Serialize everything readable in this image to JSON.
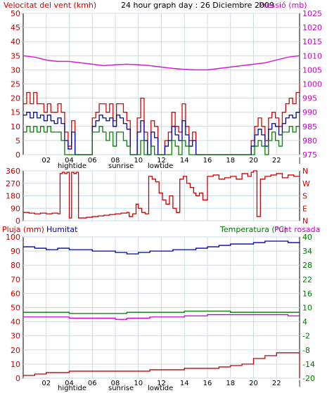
{
  "chart_data": [
    {
      "type": "line",
      "title": "24 hour graph day : 26 Diciembre 2009",
      "ylabel_left": "Velocitat del vent (kmh)",
      "ylabel_right": "Pressió (mb)",
      "x_ticks": [
        "02",
        "04",
        "06",
        "08",
        "10",
        "12",
        "14",
        "16",
        "18",
        "20",
        "22",
        "|"
      ],
      "x_annotations": [
        "hightide",
        "sunrise",
        "lowtide"
      ],
      "ylim_left": [
        0,
        50
      ],
      "yticks_left": [
        "0",
        "5",
        "10",
        "15",
        "20",
        "25",
        "30",
        "35",
        "40",
        "45",
        "50"
      ],
      "ylim_right": [
        975,
        1025
      ],
      "yticks_right": [
        "975",
        "980",
        "985",
        "990",
        "995",
        "1000",
        "1005",
        "1010",
        "1015",
        "1020",
        "1025"
      ],
      "grid": true,
      "colors": {
        "wind_gust": "#e00000",
        "wind_speed": "#0000a0",
        "wind_min": "#008000",
        "pressure": "#d020d0",
        "left_axis": "#c00000",
        "right_axis": "#cc00cc",
        "grid": "#c8dce8"
      },
      "series": [
        {
          "name": "pressure",
          "axis": "right",
          "x": [
            0,
            1,
            2,
            3,
            4,
            5,
            6,
            7,
            8,
            9,
            10,
            11,
            12,
            13,
            14,
            15,
            16,
            17,
            18,
            19,
            20,
            21,
            22,
            23,
            24
          ],
          "y": [
            1010,
            1009.5,
            1008.5,
            1008,
            1008,
            1007.5,
            1007,
            1006.5,
            1006.8,
            1007,
            1006.8,
            1006.5,
            1006,
            1005.5,
            1005.2,
            1005,
            1005,
            1005.5,
            1006,
            1006.5,
            1007,
            1007.5,
            1008.5,
            1009.5,
            1010
          ]
        },
        {
          "name": "wind_gust",
          "axis": "left",
          "x": [
            0,
            0.3,
            0.6,
            0.9,
            1.2,
            1.5,
            1.8,
            2.1,
            2.4,
            2.7,
            3.0,
            3.3,
            3.6,
            3.9,
            4.2,
            4.5,
            5.0,
            5.5,
            6.0,
            6.3,
            6.6,
            6.9,
            7.2,
            7.5,
            7.8,
            8.1,
            8.4,
            8.7,
            9.0,
            9.3,
            9.6,
            9.9,
            10.2,
            10.5,
            10.8,
            11.1,
            11.4,
            11.7,
            12.0,
            12.3,
            12.6,
            12.9,
            13.2,
            13.5,
            13.8,
            14.1,
            14.4,
            14.7,
            15.0,
            15.5,
            16,
            17,
            18,
            19,
            19.5,
            19.8,
            20.1,
            20.4,
            20.7,
            21.0,
            21.3,
            21.6,
            21.9,
            22.2,
            22.5,
            22.8,
            23.1,
            23.4,
            23.7,
            24.0
          ],
          "y": [
            18,
            22,
            18,
            22,
            18,
            18,
            15,
            18,
            15,
            15,
            18,
            15,
            8,
            3,
            12,
            0,
            0,
            0,
            13,
            15,
            18,
            18,
            15,
            18,
            12,
            18,
            18,
            15,
            12,
            0,
            0,
            13,
            20,
            8,
            0,
            12,
            10,
            0,
            0,
            5,
            8,
            15,
            10,
            8,
            18,
            10,
            5,
            8,
            0,
            0,
            0,
            0,
            0,
            0,
            0,
            5,
            10,
            13,
            10,
            5,
            13,
            15,
            13,
            10,
            15,
            18,
            20,
            18,
            22,
            25
          ]
        },
        {
          "name": "wind_speed",
          "axis": "left",
          "x": [
            0,
            0.3,
            0.6,
            0.9,
            1.2,
            1.5,
            1.8,
            2.1,
            2.4,
            2.7,
            3.0,
            3.3,
            3.6,
            3.9,
            4.2,
            4.5,
            5.0,
            5.5,
            6.0,
            6.3,
            6.6,
            6.9,
            7.2,
            7.5,
            7.8,
            8.1,
            8.4,
            8.7,
            9.0,
            9.3,
            9.6,
            9.9,
            10.2,
            10.5,
            10.8,
            11.1,
            11.4,
            11.7,
            12.0,
            12.3,
            12.6,
            12.9,
            13.2,
            13.5,
            13.8,
            14.1,
            14.4,
            14.7,
            15.0,
            15.5,
            16,
            17,
            18,
            19,
            19.5,
            19.8,
            20.1,
            20.4,
            20.7,
            21.0,
            21.3,
            21.6,
            21.9,
            22.2,
            22.5,
            22.8,
            23.1,
            23.4,
            23.7,
            24.0
          ],
          "y": [
            14,
            15,
            13,
            15,
            13,
            14,
            12,
            14,
            12,
            11,
            13,
            11,
            5,
            2,
            8,
            0,
            0,
            0,
            10,
            12,
            14,
            13,
            12,
            13,
            10,
            14,
            13,
            11,
            9,
            0,
            0,
            8,
            12,
            5,
            0,
            8,
            6,
            0,
            0,
            3,
            5,
            10,
            7,
            5,
            12,
            7,
            3,
            5,
            0,
            0,
            0,
            0,
            0,
            0,
            0,
            3,
            7,
            9,
            7,
            3,
            9,
            11,
            10,
            7,
            11,
            13,
            14,
            13,
            15,
            16
          ]
        },
        {
          "name": "wind_min",
          "axis": "left",
          "x": [
            0,
            0.3,
            0.6,
            0.9,
            1.2,
            1.5,
            1.8,
            2.1,
            2.4,
            2.7,
            3.0,
            3.3,
            3.6,
            3.9,
            4.2,
            4.5,
            5.0,
            5.5,
            6.0,
            6.3,
            6.6,
            6.9,
            7.2,
            7.5,
            7.8,
            8.1,
            8.4,
            8.7,
            9.0,
            9.3,
            9.6,
            9.9,
            10.2,
            10.5,
            10.8,
            11.1,
            11.4,
            11.7,
            12.0,
            12.3,
            12.6,
            12.9,
            13.2,
            13.5,
            13.8,
            14.1,
            14.4,
            14.7,
            15.0,
            15.5,
            16,
            17,
            18,
            19,
            19.5,
            19.8,
            20.1,
            20.4,
            20.7,
            21.0,
            21.3,
            21.6,
            21.9,
            22.2,
            22.5,
            22.8,
            23.1,
            23.4,
            23.7,
            24.0
          ],
          "y": [
            8,
            10,
            8,
            10,
            8,
            10,
            8,
            10,
            8,
            8,
            8,
            5,
            0,
            0,
            0,
            0,
            0,
            0,
            8,
            8,
            10,
            8,
            5,
            8,
            3,
            8,
            8,
            5,
            3,
            0,
            0,
            0,
            5,
            0,
            0,
            3,
            0,
            0,
            0,
            0,
            0,
            5,
            3,
            0,
            5,
            3,
            0,
            0,
            0,
            0,
            0,
            0,
            0,
            0,
            0,
            0,
            3,
            5,
            3,
            0,
            5,
            8,
            5,
            3,
            8,
            8,
            10,
            8,
            10,
            10
          ]
        }
      ]
    },
    {
      "type": "scatter",
      "ylim": [
        0,
        360
      ],
      "yticks_left": [
        "0",
        "90",
        "180",
        "270",
        "360"
      ],
      "yticks_right": [
        "N",
        "E",
        "S",
        "W",
        "N"
      ],
      "colors": {
        "direction": "#cc0000",
        "grid": "#c8dce8"
      },
      "series": [
        {
          "name": "wind_direction",
          "x": [
            0,
            0.5,
            1.0,
            1.5,
            2.0,
            2.5,
            3.0,
            3.2,
            3.4,
            3.6,
            3.8,
            4.0,
            4.2,
            4.4,
            4.6,
            4.8,
            5.0,
            5.5,
            6.0,
            6.5,
            7.0,
            7.5,
            8.0,
            8.5,
            9.0,
            9.2,
            9.5,
            9.8,
            10.0,
            10.3,
            10.6,
            10.9,
            11.2,
            11.5,
            11.8,
            12.1,
            12.4,
            12.7,
            13.0,
            13.3,
            13.6,
            13.9,
            14.2,
            14.5,
            14.8,
            15.0,
            15.3,
            15.6,
            16.0,
            16.5,
            17.0,
            17.5,
            18.0,
            18.5,
            19.0,
            19.5,
            19.8,
            20.0,
            20.3,
            20.6,
            21.0,
            21.5,
            22.0,
            22.5,
            23.0,
            23.5,
            24.0
          ],
          "y": [
            60,
            55,
            50,
            55,
            50,
            55,
            50,
            340,
            350,
            340,
            350,
            20,
            350,
            340,
            350,
            20,
            20,
            25,
            30,
            35,
            40,
            45,
            50,
            55,
            60,
            30,
            50,
            120,
            90,
            60,
            50,
            320,
            300,
            280,
            200,
            150,
            120,
            180,
            90,
            60,
            300,
            320,
            270,
            240,
            200,
            180,
            200,
            150,
            320,
            330,
            300,
            310,
            320,
            300,
            340,
            320,
            350,
            360,
            30,
            300,
            320,
            330,
            340,
            310,
            330,
            320,
            320
          ]
        }
      ]
    },
    {
      "type": "line",
      "ylabel_left": "Pluja (mm)",
      "ylabel_humidity": "Humitat",
      "ylabel_right": "Temperatura (°C)",
      "ylabel_right2": "Punt rosada",
      "x_ticks": [
        "02",
        "04",
        "06",
        "08",
        "10",
        "12",
        "14",
        "16",
        "18",
        "20",
        "22",
        "|"
      ],
      "x_annotations": [
        "hightide",
        "sunrise",
        "lowtide"
      ],
      "ylim_left": [
        0,
        100
      ],
      "yticks_left": [
        "0",
        "10",
        "20",
        "30",
        "40",
        "50",
        "60",
        "70",
        "80",
        "90",
        "100"
      ],
      "ylim_right": [
        -20,
        40
      ],
      "yticks_right": [
        "-20",
        "-14",
        "-8",
        "-2",
        "4",
        "10",
        "16",
        "22",
        "28",
        "34",
        "40"
      ],
      "grid": true,
      "colors": {
        "rain": "#cc0000",
        "humidity": "#0000aa",
        "temperature": "#007700",
        "dewpoint": "#cc00cc",
        "left_axis": "#cc0000",
        "right_axis": "#007700",
        "humidity_label": "#0000aa",
        "dewpoint_label": "#cc00cc",
        "grid": "#c8dce8"
      },
      "series": [
        {
          "name": "humidity",
          "axis": "left",
          "x": [
            0,
            1,
            2,
            3,
            4,
            5,
            6,
            7,
            8,
            9,
            10,
            11,
            12,
            13,
            14,
            15,
            16,
            17,
            18,
            19,
            20,
            21,
            22,
            23,
            24
          ],
          "y": [
            93,
            92,
            91,
            92,
            91,
            91,
            90,
            90,
            89,
            88,
            89,
            90,
            90,
            91,
            91,
            92,
            93,
            94,
            95,
            95,
            96,
            97,
            97,
            96,
            95
          ]
        },
        {
          "name": "temperature",
          "axis": "right",
          "x": [
            0,
            1,
            2,
            3,
            4,
            5,
            6,
            7,
            8,
            9,
            10,
            11,
            12,
            13,
            14,
            15,
            16,
            17,
            18,
            19,
            20,
            21,
            22,
            23,
            24
          ],
          "y": [
            8,
            8,
            8,
            8,
            7.5,
            7.5,
            7.5,
            7.5,
            7.5,
            8,
            8,
            8,
            8,
            8,
            8.5,
            8.5,
            8.5,
            8.5,
            8,
            8,
            8,
            8,
            8,
            8,
            8
          ]
        },
        {
          "name": "dewpoint",
          "axis": "right",
          "x": [
            0,
            1,
            2,
            3,
            4,
            5,
            6,
            7,
            8,
            9,
            10,
            11,
            12,
            13,
            14,
            15,
            16,
            17,
            18,
            19,
            20,
            21,
            22,
            23,
            24
          ],
          "y": [
            6,
            6,
            6,
            6,
            5.5,
            5.5,
            5.5,
            5.5,
            5,
            5.5,
            5.5,
            6,
            6,
            6,
            6.5,
            6.5,
            7,
            7,
            7,
            7,
            7,
            7,
            7,
            6.5,
            6.5
          ]
        },
        {
          "name": "rain",
          "axis": "left",
          "x": [
            0,
            1,
            2,
            3,
            4,
            5,
            6,
            7,
            8,
            9,
            10,
            11,
            12,
            13,
            14,
            15,
            16,
            17,
            18,
            19,
            20,
            21,
            22,
            23,
            23.9,
            24
          ],
          "y": [
            2,
            3,
            4,
            4,
            5,
            5,
            5,
            5,
            5,
            5,
            5,
            6,
            6,
            6,
            7,
            7,
            7,
            8,
            9,
            10,
            14,
            16,
            18,
            18,
            18,
            0
          ]
        }
      ]
    }
  ]
}
